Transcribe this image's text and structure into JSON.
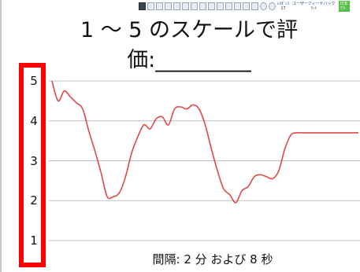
{
  "toolbar": {
    "icons": [
      "app-logo-icon",
      "pointer-icon",
      "chart-icon",
      "grid-icon",
      "rating-icon",
      "table-icon",
      "slide-icon",
      "image-icon",
      "clock-icon",
      "dropdown-icon",
      "settings-icon",
      "dropdown-icon",
      "share-icon",
      "draw-icon",
      "target-icon",
      "help-icon"
    ],
    "cell1_top": "ﾚｽﾎﾟﾝｽ",
    "cell1_bottom": "17",
    "cell2_top": "ユーザーフィードバック",
    "cell2_bottom": "ｸｰﾄ",
    "green_top": "日本",
    "green_bottom": "ｱｳﾄ"
  },
  "slide": {
    "title_line1": "1 ～ 5 のスケールで評",
    "title_line2": "価:_________",
    "footer": "間隔: 2 分 および 8 秒"
  },
  "chart_data": {
    "type": "line",
    "title": "",
    "xlabel": "",
    "ylabel": "",
    "y_ticks": [
      "1",
      "2",
      "3",
      "4",
      "5"
    ],
    "ylim": [
      1,
      5
    ],
    "grid": true,
    "colors": {
      "line": "#e04848",
      "grid": "#bfbfbf"
    },
    "series": [
      {
        "name": "",
        "x": [
          0,
          2,
          4,
          6,
          8,
          10,
          12,
          14,
          16,
          18,
          20,
          22,
          24,
          26,
          28,
          30,
          32,
          34,
          36,
          38,
          40,
          42,
          44,
          46,
          48,
          50,
          52,
          54,
          56,
          58,
          60,
          62,
          64,
          66,
          68,
          70,
          72,
          74,
          76,
          78,
          80,
          82,
          84,
          86,
          88,
          90,
          92,
          94,
          96,
          98,
          100
        ],
        "y": [
          5.0,
          4.5,
          4.75,
          4.6,
          4.45,
          4.3,
          3.75,
          3.25,
          2.7,
          2.1,
          2.1,
          2.2,
          2.6,
          3.2,
          3.6,
          3.9,
          3.8,
          4.05,
          4.1,
          3.9,
          4.3,
          4.35,
          4.3,
          4.4,
          4.3,
          3.9,
          3.3,
          2.75,
          2.3,
          2.15,
          1.95,
          2.25,
          2.35,
          2.6,
          2.65,
          2.6,
          2.55,
          2.75,
          3.3,
          3.65,
          3.7,
          3.7,
          3.7,
          3.7,
          3.7,
          3.7,
          3.7,
          3.7,
          3.7,
          3.7,
          3.7
        ]
      }
    ],
    "highlight": {
      "target": "y-axis-ticks",
      "color": "#ff0000"
    }
  }
}
